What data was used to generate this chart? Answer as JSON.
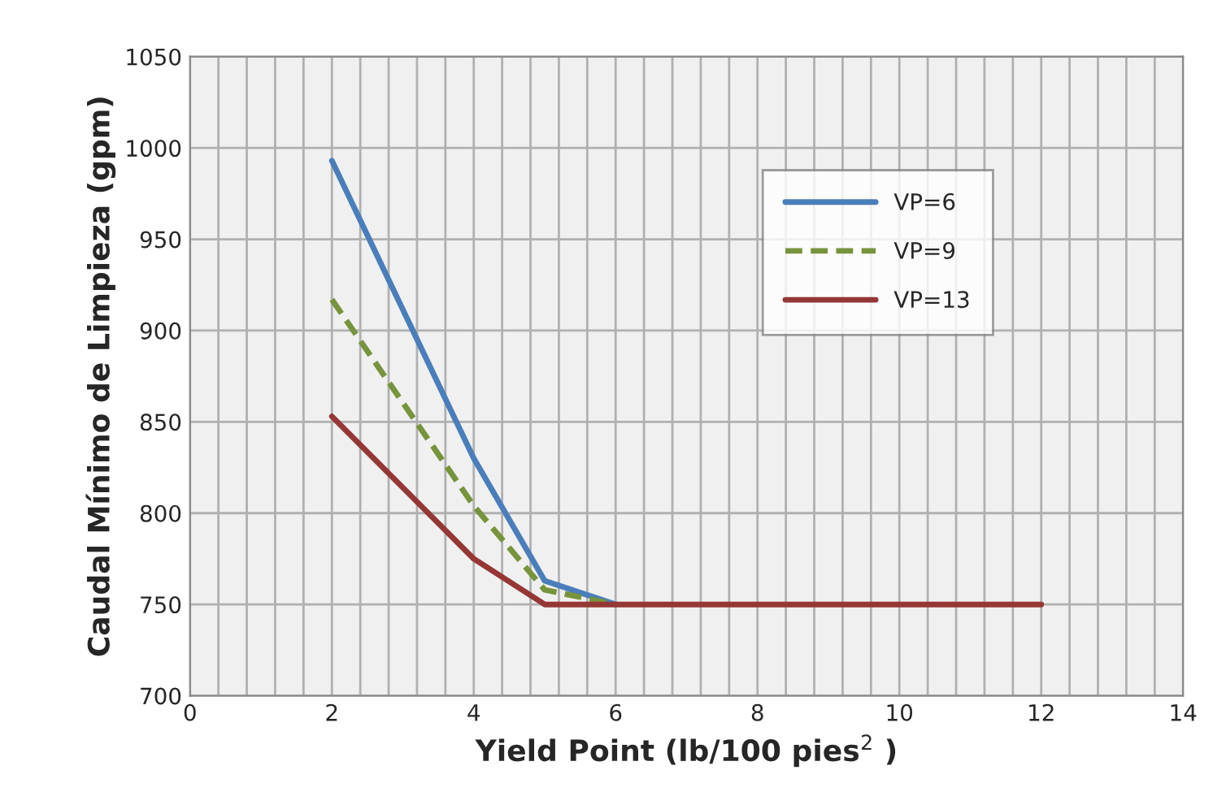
{
  "chart_data": {
    "type": "line",
    "xlabel": "Yield Point (lb/100 pies$^{2}$ )",
    "ylabel": "Caudal Mínimo de Limpieza (gpm)",
    "x": [
      2,
      4,
      5,
      6,
      7,
      8,
      9,
      10,
      11,
      12
    ],
    "series": [
      {
        "name": "VP=6",
        "color": "#4a7ebb",
        "line_style": "solid",
        "values": [
          993,
          830,
          763,
          750,
          null,
          null,
          null,
          null,
          null,
          null
        ]
      },
      {
        "name": "VP=9",
        "color": "#77933c",
        "line_style": "dashed",
        "values": [
          917,
          804,
          758,
          750,
          null,
          null,
          null,
          null,
          null,
          null
        ]
      },
      {
        "name": "VP=13",
        "color": "#953735",
        "line_style": "solid",
        "values": [
          853,
          775,
          750,
          750,
          750,
          750,
          750,
          750,
          750,
          750
        ]
      }
    ],
    "xlim": [
      0,
      14
    ],
    "xticks": [
      0,
      {
        "value": 0.4,
        "label": null
      },
      {
        "value": 0.8,
        "label": null
      },
      {
        "value": 1.2,
        "label": null
      },
      {
        "value": 1.6,
        "label": null
      },
      2,
      {
        "value": 2.4,
        "label": null
      },
      {
        "value": 2.8,
        "label": null
      },
      {
        "value": 3.2,
        "label": null
      },
      {
        "value": 3.6,
        "label": null
      },
      4,
      {
        "value": 4.4,
        "label": null
      },
      {
        "value": 4.8,
        "label": null
      },
      {
        "value": 5.2,
        "label": null
      },
      {
        "value": 5.6,
        "label": null
      },
      6,
      {
        "value": 6.4,
        "label": null
      },
      {
        "value": 6.8,
        "label": null
      },
      {
        "value": 7.2,
        "label": null
      },
      {
        "value": 7.6,
        "label": null
      },
      8,
      {
        "value": 8.4,
        "label": null
      },
      {
        "value": 8.8,
        "label": null
      },
      {
        "value": 9.2,
        "label": null
      },
      {
        "value": 9.6,
        "label": null
      },
      10,
      {
        "value": 10.4,
        "label": null
      },
      {
        "value": 10.8,
        "label": null
      },
      {
        "value": 11.2,
        "label": null
      },
      {
        "value": 11.6,
        "label": null
      },
      12,
      {
        "value": 12.4,
        "label": null
      },
      {
        "value": 12.8,
        "label": null
      },
      {
        "value": 13.2,
        "label": null
      },
      {
        "value": 13.6,
        "label": null
      },
      14
    ],
    "ylim": [
      700,
      1050
    ],
    "yticks": [
      700,
      750,
      800,
      850,
      900,
      950,
      1000,
      1050
    ],
    "grid": true,
    "legend": "top right",
    "marker": "none"
  }
}
